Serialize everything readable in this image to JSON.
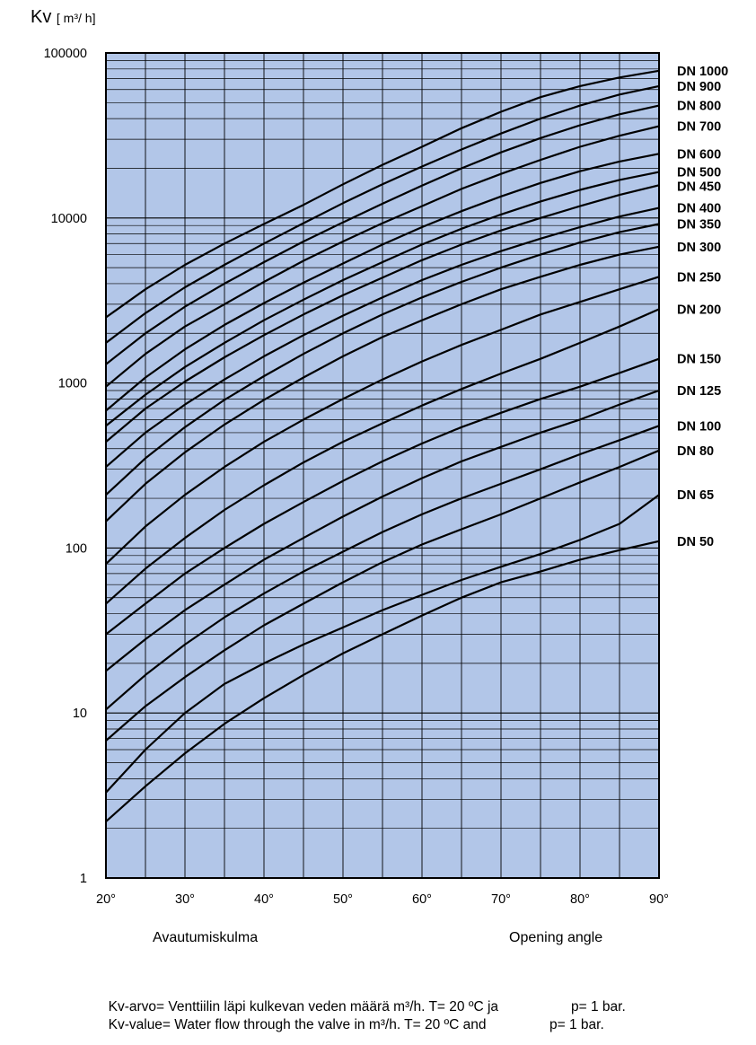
{
  "chart_data": {
    "type": "line",
    "y_title": "Kv",
    "y_unit": "[ m³/ h]",
    "y_scale": "log",
    "ylim": [
      1,
      100000
    ],
    "y_ticks": [
      "100000",
      "10000",
      "1000",
      "100",
      "10",
      "1"
    ],
    "xlim": [
      20,
      90
    ],
    "x_ticks": [
      "20°",
      "30°",
      "40°",
      "50°",
      "60°",
      "70°",
      "80°",
      "90°"
    ],
    "xlabel_fi": "Avautumiskulma",
    "xlabel_en": "Opening angle",
    "grid": true,
    "x_degrees": [
      20,
      25,
      30,
      35,
      40,
      45,
      50,
      55,
      60,
      65,
      70,
      75,
      80,
      85,
      90
    ],
    "series": [
      {
        "name": "DN 1000",
        "values": [
          2500,
          3700,
          5200,
          7000,
          9200,
          12000,
          16000,
          21000,
          27000,
          35000,
          44000,
          54000,
          63000,
          71000,
          78000
        ]
      },
      {
        "name": "DN 900",
        "values": [
          1750,
          2650,
          3800,
          5200,
          7000,
          9300,
          12300,
          16000,
          20500,
          26000,
          32500,
          40000,
          48000,
          56000,
          63000
        ]
      },
      {
        "name": "DN 800",
        "values": [
          1300,
          2000,
          2900,
          4000,
          5400,
          7200,
          9400,
          12200,
          15700,
          20000,
          25000,
          30500,
          36500,
          42500,
          48000
        ]
      },
      {
        "name": "DN 700",
        "values": [
          950,
          1500,
          2200,
          3000,
          4100,
          5500,
          7200,
          9300,
          11800,
          15000,
          18500,
          22500,
          27000,
          31500,
          36000
        ]
      },
      {
        "name": "DN 600",
        "values": [
          680,
          1080,
          1600,
          2250,
          3050,
          4050,
          5300,
          6900,
          8800,
          11000,
          13500,
          16300,
          19200,
          22000,
          24500
        ]
      },
      {
        "name": "DN 500",
        "values": [
          550,
          850,
          1250,
          1750,
          2400,
          3200,
          4200,
          5400,
          6900,
          8600,
          10500,
          12600,
          14800,
          17000,
          19000
        ]
      },
      {
        "name": "DN 450",
        "values": [
          440,
          700,
          1020,
          1430,
          1950,
          2600,
          3400,
          4350,
          5550,
          6900,
          8400,
          10000,
          11800,
          13800,
          15800
        ]
      },
      {
        "name": "DN 400",
        "values": [
          310,
          500,
          740,
          1050,
          1450,
          1950,
          2560,
          3300,
          4200,
          5200,
          6300,
          7500,
          8800,
          10200,
          11500
        ]
      },
      {
        "name": "DN 350",
        "values": [
          210,
          350,
          540,
          790,
          1100,
          1500,
          2000,
          2600,
          3300,
          4100,
          5000,
          6000,
          7100,
          8200,
          9200
        ]
      },
      {
        "name": "DN 300",
        "values": [
          145,
          245,
          380,
          560,
          790,
          1080,
          1450,
          1900,
          2400,
          3000,
          3700,
          4400,
          5200,
          6000,
          6700
        ]
      },
      {
        "name": "DN 250",
        "values": [
          80,
          135,
          210,
          310,
          440,
          600,
          800,
          1050,
          1350,
          1700,
          2100,
          2600,
          3100,
          3700,
          4400
        ]
      },
      {
        "name": "DN 200",
        "values": [
          46,
          75,
          115,
          170,
          240,
          330,
          440,
          570,
          730,
          920,
          1140,
          1400,
          1750,
          2200,
          2800
        ]
      },
      {
        "name": "DN 150",
        "values": [
          30,
          46,
          70,
          100,
          140,
          190,
          255,
          335,
          430,
          540,
          660,
          800,
          950,
          1150,
          1400
        ]
      },
      {
        "name": "DN 125",
        "values": [
          18,
          28,
          42,
          60,
          85,
          115,
          155,
          205,
          265,
          335,
          410,
          500,
          600,
          740,
          900
        ]
      },
      {
        "name": "DN 100",
        "values": [
          10.5,
          17,
          26,
          38,
          53,
          72,
          95,
          125,
          160,
          200,
          245,
          300,
          370,
          450,
          550
        ]
      },
      {
        "name": "DN 80",
        "values": [
          6.8,
          11,
          16.5,
          24,
          34,
          46,
          62,
          82,
          105,
          130,
          160,
          200,
          250,
          310,
          390
        ]
      },
      {
        "name": "DN 65",
        "values": [
          3.3,
          6,
          10,
          15,
          20,
          26,
          33,
          42,
          52,
          64,
          77,
          92,
          112,
          140,
          210
        ]
      },
      {
        "name": "DN 50",
        "values": [
          2.2,
          3.6,
          5.7,
          8.6,
          12.3,
          17,
          23,
          30,
          39,
          50,
          62,
          72,
          85,
          97,
          110
        ]
      }
    ]
  },
  "footnote": {
    "line1": "Kv-arvo= Venttiilin läpi kulkevan veden määrä m³/h. T= 20 ºC ja",
    "line1_p": "p= 1 bar.",
    "line2": "Kv-value= Water flow through the valve in m³/h. T= 20 ºC and",
    "line2_p": "p= 1 bar."
  }
}
